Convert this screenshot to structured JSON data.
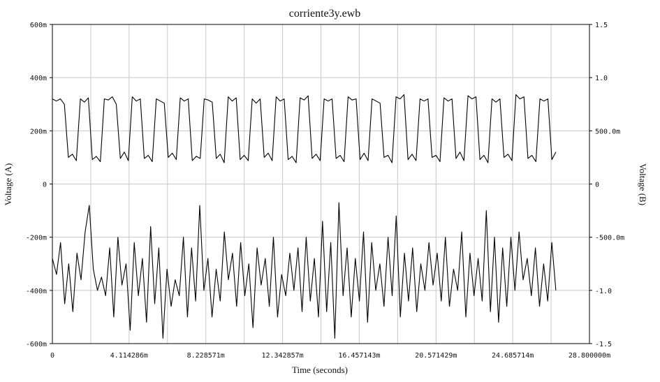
{
  "chart_data": {
    "type": "line",
    "title": "corriente3y.ewb",
    "xlabel": "Time (seconds)",
    "ylabel_left": "Voltage (A)",
    "ylabel_right": "Voltage (B)",
    "x_ticks": [
      "0",
      "4.114286m",
      "8.228571m",
      "12.342857m",
      "16.457143m",
      "20.571429m",
      "24.685714m",
      "28.800000m"
    ],
    "y_left_ticks": [
      "600m",
      "400m",
      "200m",
      "0",
      "-200m",
      "-400m",
      "-600m"
    ],
    "y_right_ticks": [
      "1.5",
      "1.0",
      "500.0m",
      "0",
      "-500.0m",
      "-1.0",
      "-1.5"
    ],
    "xlim": [
      0,
      0.0288
    ],
    "ylim_left": [
      -0.6,
      0.6
    ],
    "ylim_right": [
      -1.5,
      1.5
    ],
    "grid": true,
    "series": [
      {
        "axis": "right",
        "x_end": 0.027,
        "values": [
          0.8,
          0.78,
          0.8,
          0.75,
          0.25,
          0.28,
          0.22,
          0.8,
          0.77,
          0.81,
          0.23,
          0.26,
          0.21,
          0.8,
          0.79,
          0.82,
          0.75,
          0.24,
          0.3,
          0.22,
          0.82,
          0.78,
          0.8,
          0.24,
          0.27,
          0.21,
          0.8,
          0.78,
          0.76,
          0.25,
          0.29,
          0.23,
          0.81,
          0.78,
          0.8,
          0.22,
          0.26,
          0.24,
          0.8,
          0.79,
          0.77,
          0.24,
          0.28,
          0.2,
          0.82,
          0.78,
          0.81,
          0.23,
          0.27,
          0.22,
          0.8,
          0.76,
          0.8,
          0.25,
          0.29,
          0.22,
          0.82,
          0.78,
          0.8,
          0.23,
          0.26,
          0.2,
          0.81,
          0.79,
          0.83,
          0.24,
          0.28,
          0.22,
          0.8,
          0.78,
          0.8,
          0.24,
          0.27,
          0.21,
          0.82,
          0.79,
          0.8,
          0.23,
          0.29,
          0.22,
          0.8,
          0.78,
          0.76,
          0.25,
          0.27,
          0.2,
          0.82,
          0.8,
          0.84,
          0.23,
          0.28,
          0.22,
          0.8,
          0.78,
          0.8,
          0.25,
          0.27,
          0.21,
          0.81,
          0.78,
          0.8,
          0.24,
          0.3,
          0.22,
          0.83,
          0.8,
          0.82,
          0.23,
          0.27,
          0.2,
          0.8,
          0.77,
          0.8,
          0.25,
          0.28,
          0.22,
          0.84,
          0.8,
          0.82,
          0.24,
          0.27,
          0.21,
          0.8,
          0.78,
          0.8,
          0.23,
          0.3
        ]
      },
      {
        "axis": "left",
        "x_end": 0.027,
        "values": [
          -0.28,
          -0.34,
          -0.22,
          -0.45,
          -0.3,
          -0.48,
          -0.26,
          -0.36,
          -0.18,
          -0.08,
          -0.32,
          -0.4,
          -0.35,
          -0.42,
          -0.24,
          -0.5,
          -0.2,
          -0.38,
          -0.3,
          -0.55,
          -0.22,
          -0.42,
          -0.28,
          -0.52,
          -0.16,
          -0.45,
          -0.24,
          -0.58,
          -0.32,
          -0.46,
          -0.36,
          -0.42,
          -0.2,
          -0.5,
          -0.24,
          -0.44,
          -0.08,
          -0.4,
          -0.28,
          -0.5,
          -0.32,
          -0.44,
          -0.18,
          -0.36,
          -0.26,
          -0.46,
          -0.22,
          -0.42,
          -0.3,
          -0.54,
          -0.24,
          -0.38,
          -0.28,
          -0.46,
          -0.2,
          -0.5,
          -0.34,
          -0.42,
          -0.26,
          -0.4,
          -0.24,
          -0.48,
          -0.2,
          -0.44,
          -0.28,
          -0.5,
          -0.14,
          -0.48,
          -0.22,
          -0.58,
          -0.07,
          -0.42,
          -0.24,
          -0.5,
          -0.28,
          -0.44,
          -0.18,
          -0.52,
          -0.22,
          -0.4,
          -0.3,
          -0.46,
          -0.2,
          -0.42,
          -0.12,
          -0.5,
          -0.26,
          -0.44,
          -0.24,
          -0.48,
          -0.3,
          -0.4,
          -0.22,
          -0.38,
          -0.26,
          -0.44,
          -0.2,
          -0.46,
          -0.32,
          -0.4,
          -0.18,
          -0.5,
          -0.26,
          -0.42,
          -0.28,
          -0.44,
          -0.1,
          -0.48,
          -0.2,
          -0.52,
          -0.24,
          -0.46,
          -0.2,
          -0.4,
          -0.18,
          -0.36,
          -0.28,
          -0.42,
          -0.24,
          -0.46,
          -0.3,
          -0.44,
          -0.22,
          -0.4
        ]
      }
    ]
  }
}
